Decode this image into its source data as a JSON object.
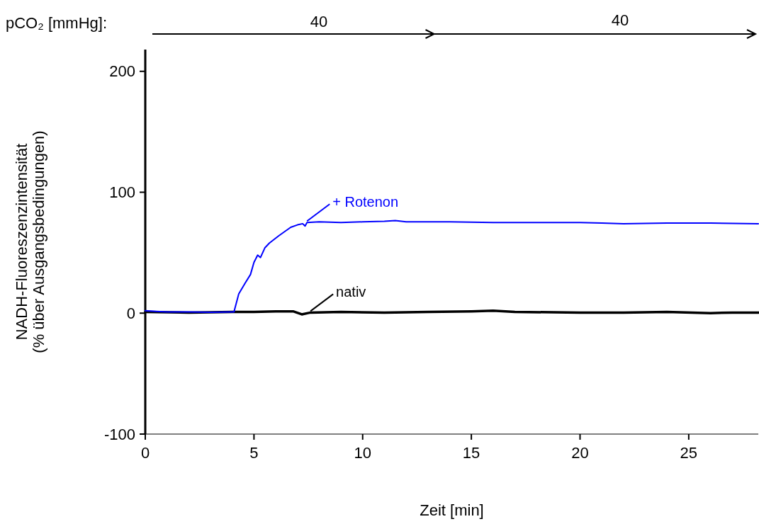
{
  "chart_data": {
    "type": "line",
    "xlabel": "Zeit [min]",
    "ylabel": "NADH-Fluoreszenzintensität\n(% über Ausgangsbedingungen)",
    "xlim": [
      0,
      28.2
    ],
    "ylim": [
      -100,
      218
    ],
    "xticks": [
      0,
      5,
      10,
      15,
      20,
      25
    ],
    "yticks": [
      -100,
      0,
      100,
      200
    ],
    "legend": false,
    "grid": false,
    "annotations": [
      "pCO₂ [mmHg]:",
      "40",
      "40"
    ],
    "series": [
      {
        "name": "+ Rotenon",
        "color": "#0000ff",
        "x": [
          0,
          0.5,
          1,
          2,
          3,
          4,
          4.08,
          4.3,
          4.6,
          4.84,
          5.0,
          5.17,
          5.3,
          5.5,
          5.71,
          6.14,
          6.69,
          7.0,
          7.24,
          7.35,
          7.44,
          8,
          9,
          10,
          11,
          11.5,
          12,
          14,
          16,
          18,
          20,
          21,
          22,
          24,
          26,
          28.2
        ],
        "values": [
          2,
          1.5,
          1,
          1,
          0.8,
          1,
          1,
          16,
          25,
          32,
          42,
          48,
          46,
          54,
          58,
          64,
          71,
          73,
          74,
          72,
          75,
          75.5,
          75,
          75.5,
          76,
          76.5,
          75.5,
          75.5,
          75,
          75,
          75,
          74.5,
          74,
          74.5,
          74.5,
          74
        ]
      },
      {
        "name": "nativ",
        "color": "#000000",
        "x": [
          0,
          2,
          4,
          5,
          6,
          6.8,
          7.2,
          7.6,
          9,
          11,
          13,
          15,
          16,
          17,
          20,
          22,
          24,
          26,
          27,
          28.2
        ],
        "values": [
          1,
          0.5,
          1,
          1,
          1.5,
          1.5,
          -1,
          0.5,
          1,
          0.5,
          1,
          1.5,
          2,
          1,
          0.5,
          0.5,
          1,
          0,
          0.5,
          0.5
        ]
      }
    ]
  }
}
